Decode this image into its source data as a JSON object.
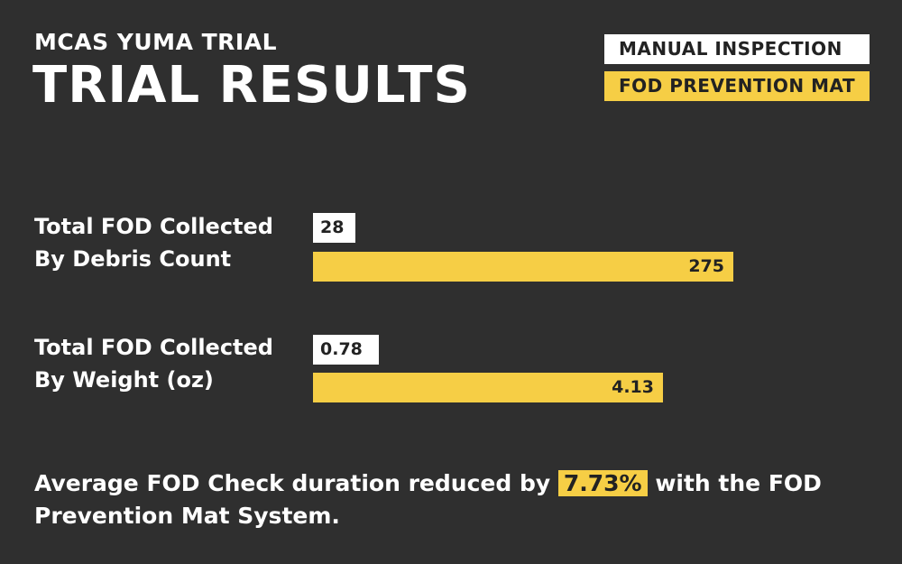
{
  "subtitle": "MCAS YUMA TRIAL",
  "title": "TRIAL RESULTS",
  "legend": {
    "manual": "MANUAL INSPECTION",
    "mat": "FOD PREVENTION MAT"
  },
  "colors": {
    "background": "#2f2f2f",
    "manual": "#ffffff",
    "mat": "#f6ce45"
  },
  "chart_data": [
    {
      "type": "bar",
      "category_label": "Total FOD Collected\nBy Debris Count",
      "series": [
        {
          "name": "MANUAL INSPECTION",
          "value": 28,
          "label": "28"
        },
        {
          "name": "FOD PREVENTION MAT",
          "value": 275,
          "label": "275"
        }
      ]
    },
    {
      "type": "bar",
      "category_label": "Total FOD Collected\nBy Weight (oz)",
      "series": [
        {
          "name": "MANUAL INSPECTION",
          "value": 0.78,
          "label": "0.78"
        },
        {
          "name": "FOD PREVENTION MAT",
          "value": 4.13,
          "label": "4.13"
        }
      ]
    }
  ],
  "footer": {
    "before": "Average FOD Check duration reduced by",
    "highlight": "7.73%",
    "after": "with the FOD Prevention Mat System."
  }
}
